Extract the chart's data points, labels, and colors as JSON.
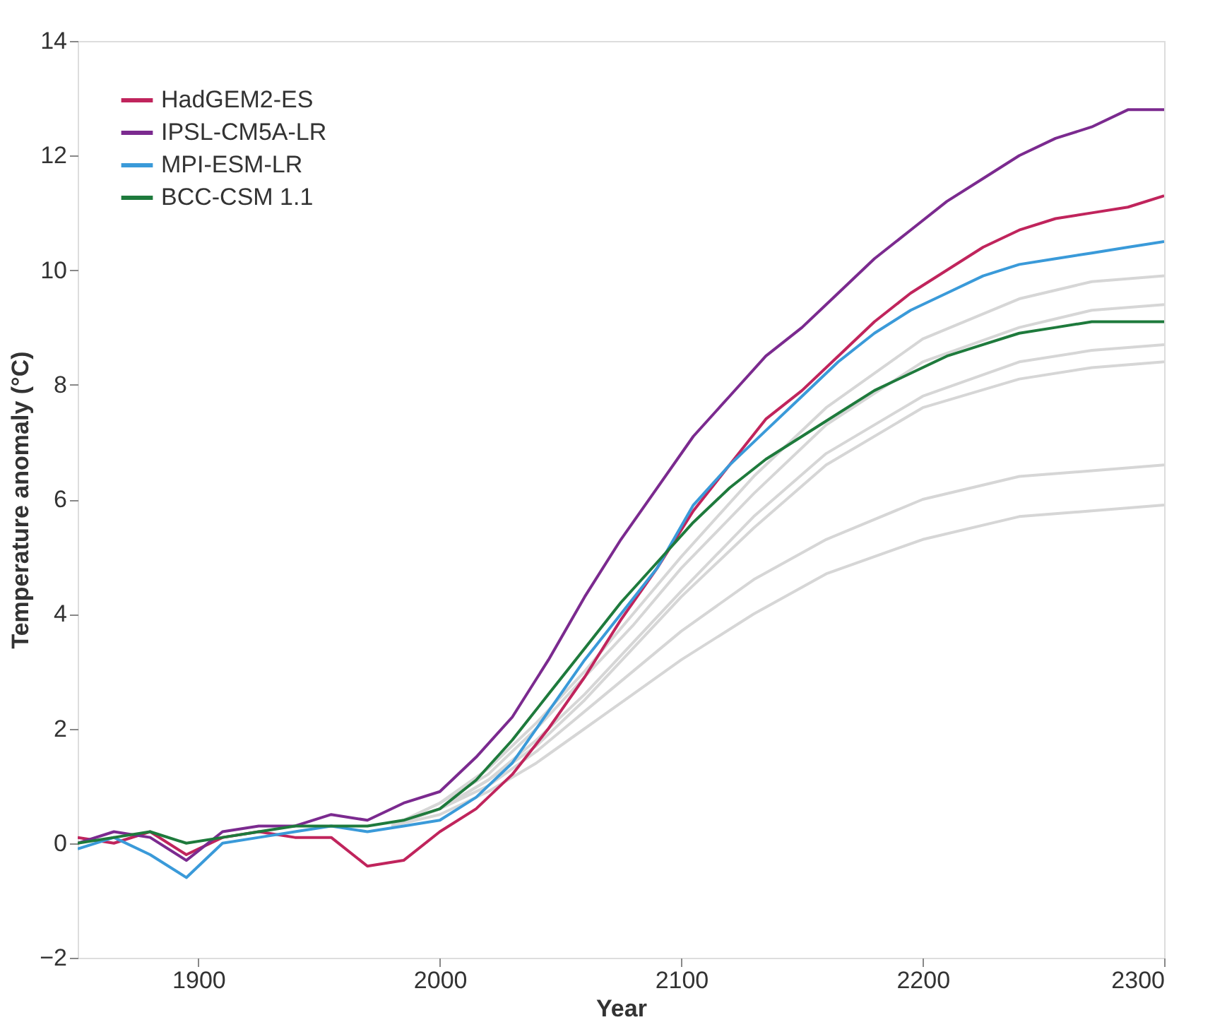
{
  "chart_data": {
    "type": "line",
    "xlabel": "Year",
    "ylabel": "Temperature anomaly (°C)",
    "xlim": [
      1850,
      2300
    ],
    "xticks": [
      1900,
      2000,
      2100,
      2200,
      2300
    ],
    "ylim": [
      -2,
      14
    ],
    "yticks": [
      -2,
      0,
      2,
      4,
      6,
      8,
      10,
      12,
      14
    ],
    "grid": false,
    "legend": "top left",
    "marker": "none",
    "line_style": "solid",
    "series": [
      {
        "color": "#d6d6d6",
        "x": [
          1980,
          2000,
          2020,
          2040,
          2060,
          2080,
          2100,
          2130,
          2160,
          2200,
          2240,
          2270,
          2300
        ],
        "values": [
          0.3,
          0.7,
          1.3,
          2.1,
          3.0,
          4.0,
          5.0,
          6.4,
          7.6,
          8.8,
          9.5,
          9.8,
          9.9
        ]
      },
      {
        "color": "#d6d6d6",
        "x": [
          1980,
          2000,
          2020,
          2040,
          2060,
          2080,
          2100,
          2130,
          2160,
          2200,
          2240,
          2270,
          2300
        ],
        "values": [
          0.3,
          0.7,
          1.2,
          2.0,
          2.9,
          3.8,
          4.8,
          6.1,
          7.3,
          8.4,
          9.0,
          9.3,
          9.4
        ]
      },
      {
        "color": "#d6d6d6",
        "x": [
          1980,
          2000,
          2020,
          2040,
          2060,
          2080,
          2100,
          2130,
          2160,
          2200,
          2240,
          2270,
          2300
        ],
        "values": [
          0.3,
          0.6,
          1.1,
          1.8,
          2.6,
          3.5,
          4.4,
          5.7,
          6.8,
          7.8,
          8.4,
          8.6,
          8.7
        ]
      },
      {
        "color": "#d6d6d6",
        "x": [
          1980,
          2000,
          2020,
          2040,
          2060,
          2080,
          2100,
          2130,
          2160,
          2200,
          2240,
          2270,
          2300
        ],
        "values": [
          0.3,
          0.6,
          1.1,
          1.7,
          2.5,
          3.4,
          4.3,
          5.5,
          6.6,
          7.6,
          8.1,
          8.3,
          8.4
        ]
      },
      {
        "color": "#d6d6d6",
        "x": [
          1980,
          2000,
          2020,
          2040,
          2060,
          2080,
          2100,
          2130,
          2160,
          2200,
          2240,
          2270,
          2300
        ],
        "values": [
          0.3,
          0.6,
          1.0,
          1.6,
          2.3,
          3.0,
          3.7,
          4.6,
          5.3,
          6.0,
          6.4,
          6.5,
          6.6
        ]
      },
      {
        "color": "#d6d6d6",
        "x": [
          1980,
          2000,
          2020,
          2040,
          2060,
          2080,
          2100,
          2130,
          2160,
          2200,
          2240,
          2270,
          2300
        ],
        "values": [
          0.3,
          0.5,
          0.9,
          1.4,
          2.0,
          2.6,
          3.2,
          4.0,
          4.7,
          5.3,
          5.7,
          5.8,
          5.9
        ]
      },
      {
        "name": "HadGEM2-ES",
        "color": "#c0245c",
        "x": [
          1850,
          1865,
          1880,
          1895,
          1910,
          1925,
          1940,
          1955,
          1970,
          1985,
          2000,
          2015,
          2030,
          2045,
          2060,
          2075,
          2090,
          2105,
          2120,
          2135,
          2150,
          2165,
          2180,
          2195,
          2210,
          2225,
          2240,
          2255,
          2270,
          2285,
          2300
        ],
        "values": [
          0.1,
          0.0,
          0.2,
          -0.2,
          0.1,
          0.2,
          0.1,
          0.1,
          -0.4,
          -0.3,
          0.2,
          0.6,
          1.2,
          2.0,
          2.9,
          3.9,
          4.8,
          5.8,
          6.6,
          7.4,
          7.9,
          8.5,
          9.1,
          9.6,
          10.0,
          10.4,
          10.7,
          10.9,
          11.0,
          11.1,
          11.3
        ]
      },
      {
        "name": "IPSL-CM5A-LR",
        "color": "#7b2a8f",
        "x": [
          1850,
          1865,
          1880,
          1895,
          1910,
          1925,
          1940,
          1955,
          1970,
          1985,
          2000,
          2015,
          2030,
          2045,
          2060,
          2075,
          2090,
          2105,
          2120,
          2135,
          2150,
          2165,
          2180,
          2195,
          2210,
          2225,
          2240,
          2255,
          2270,
          2285,
          2300
        ],
        "values": [
          0.0,
          0.2,
          0.1,
          -0.3,
          0.2,
          0.3,
          0.3,
          0.5,
          0.4,
          0.7,
          0.9,
          1.5,
          2.2,
          3.2,
          4.3,
          5.3,
          6.2,
          7.1,
          7.8,
          8.5,
          9.0,
          9.6,
          10.2,
          10.7,
          11.2,
          11.6,
          12.0,
          12.3,
          12.5,
          12.8,
          12.8
        ]
      },
      {
        "name": "MPI-ESM-LR",
        "color": "#3a9ad9",
        "x": [
          1850,
          1865,
          1880,
          1895,
          1910,
          1925,
          1940,
          1955,
          1970,
          1985,
          2000,
          2015,
          2030,
          2045,
          2060,
          2075,
          2090,
          2105,
          2120,
          2135,
          2150,
          2165,
          2180,
          2195,
          2210,
          2225,
          2240,
          2255,
          2270,
          2285,
          2300
        ],
        "values": [
          -0.1,
          0.1,
          -0.2,
          -0.6,
          0.0,
          0.1,
          0.2,
          0.3,
          0.2,
          0.3,
          0.4,
          0.8,
          1.4,
          2.3,
          3.2,
          4.0,
          4.8,
          5.9,
          6.6,
          7.2,
          7.8,
          8.4,
          8.9,
          9.3,
          9.6,
          9.9,
          10.1,
          10.2,
          10.3,
          10.4,
          10.5
        ]
      },
      {
        "name": "BCC-CSM 1.1",
        "color": "#1e7a3c",
        "x": [
          1850,
          1865,
          1880,
          1895,
          1910,
          1925,
          1940,
          1955,
          1970,
          1985,
          2000,
          2015,
          2030,
          2045,
          2060,
          2075,
          2090,
          2105,
          2120,
          2135,
          2150,
          2165,
          2180,
          2195,
          2210,
          2225,
          2240,
          2255,
          2270,
          2285,
          2300
        ],
        "values": [
          0.0,
          0.1,
          0.2,
          0.0,
          0.1,
          0.2,
          0.3,
          0.3,
          0.3,
          0.4,
          0.6,
          1.1,
          1.8,
          2.6,
          3.4,
          4.2,
          4.9,
          5.6,
          6.2,
          6.7,
          7.1,
          7.5,
          7.9,
          8.2,
          8.5,
          8.7,
          8.9,
          9.0,
          9.1,
          9.1,
          9.1
        ]
      }
    ]
  }
}
